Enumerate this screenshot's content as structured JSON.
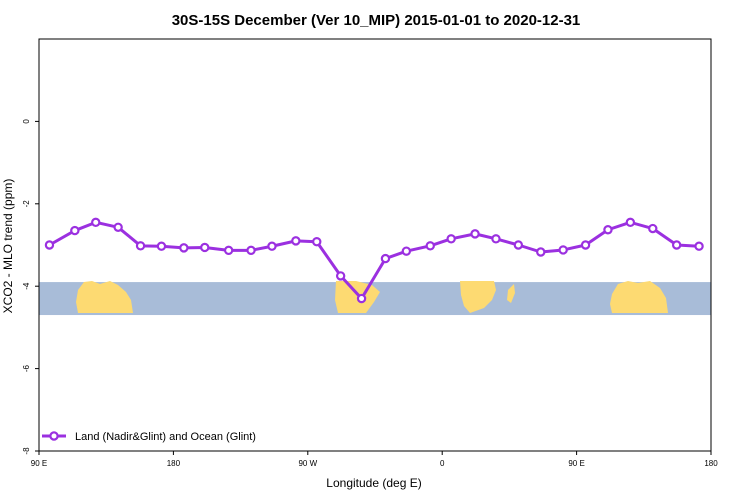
{
  "chart_data": {
    "type": "line",
    "title": "30S-15S December (Ver 10_MIP)   2015-01-01 to 2020-12-31",
    "xlabel": "Longitude (deg E)",
    "ylabel": "XCO2 - MLO trend (ppm)",
    "xlim": [
      90,
      540
    ],
    "ylim": [
      -8,
      2
    ],
    "x_tick_values": [
      90,
      180,
      270,
      360,
      450,
      540
    ],
    "x_tick_labels": [
      "90 E",
      "180",
      "90 W",
      "0",
      "90 E",
      "180"
    ],
    "y_tick_values": [
      0,
      -2,
      -4,
      -6,
      -8
    ],
    "y_tick_labels": [
      "0",
      "-2",
      "-4",
      "-6",
      "-8"
    ],
    "grid": false,
    "legend_position": "bottom-left",
    "map_band": {
      "y_range": [
        -4.7,
        -3.9
      ],
      "ocean_color": "#a8bcd8",
      "land_color": "#fdda72"
    },
    "series": [
      {
        "name": "Land (Nadir&Glint) and Ocean (Glint)",
        "color": "#9b30e0",
        "x": [
          97,
          114,
          128,
          143,
          158,
          172,
          187,
          201,
          217,
          232,
          246,
          262,
          276,
          292,
          306,
          322,
          336,
          352,
          366,
          382,
          396,
          411,
          426,
          441,
          456,
          471,
          486,
          501,
          517,
          532
        ],
        "values": [
          -3.0,
          -2.65,
          -2.45,
          -2.57,
          -3.02,
          -3.03,
          -3.07,
          -3.06,
          -3.13,
          -3.13,
          -3.03,
          -2.9,
          -2.92,
          -3.75,
          -4.3,
          -3.33,
          -3.15,
          -3.02,
          -2.85,
          -2.73,
          -2.85,
          -3.0,
          -3.17,
          -3.12,
          -3.0,
          -2.63,
          -2.45,
          -2.6,
          -3.0,
          -3.03
        ]
      }
    ]
  }
}
